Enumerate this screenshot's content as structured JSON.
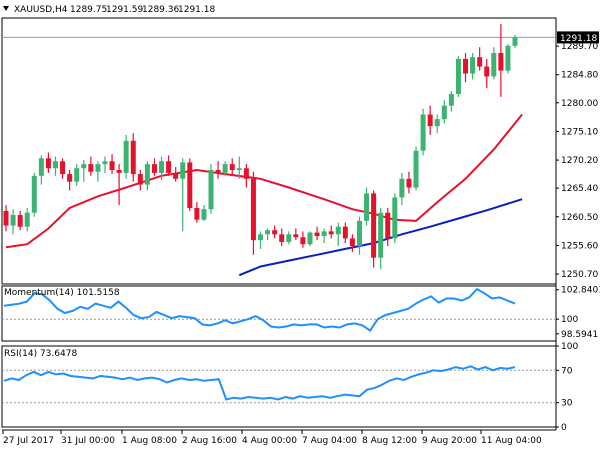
{
  "header": {
    "symbol": "XAUUSD,H4",
    "open": "1289.75",
    "high": "1291.59",
    "low": "1289.36",
    "close": "1291.18"
  },
  "colors": {
    "bull": "#3cb371",
    "bear": "#e8112d",
    "ma_fast": "#e8112d",
    "ma_slow": "#0a1fbf",
    "osc": "#1e90ff",
    "grid": "#9a9a9a"
  },
  "chart_data": [
    {
      "type": "candlestick",
      "panel": "price",
      "ylim": [
        1249.0,
        1294.5
      ],
      "ytick_labels": [
        "1289.70",
        "1284.80",
        "1280.00",
        "1275.10",
        "1270.20",
        "1265.40",
        "1260.50",
        "1255.60",
        "1250.70"
      ],
      "current_price_label": "1291.18",
      "xtick_labels": [
        "27 Jul 2017",
        "31 Jul 00:00",
        "1 Aug 08:00",
        "2 Aug 16:00",
        "4 Aug 00:00",
        "7 Aug 04:00",
        "8 Aug 12:00",
        "9 Aug 20:00",
        "11 Aug 04:00"
      ],
      "candles": [
        {
          "o": 1261.5,
          "h": 1262.5,
          "l": 1258.0,
          "c": 1259.0
        },
        {
          "o": 1259.0,
          "h": 1261.8,
          "l": 1257.5,
          "c": 1260.8
        },
        {
          "o": 1260.8,
          "h": 1261.5,
          "l": 1258.2,
          "c": 1258.8
        },
        {
          "o": 1258.8,
          "h": 1262.0,
          "l": 1258.0,
          "c": 1261.2
        },
        {
          "o": 1261.2,
          "h": 1268.0,
          "l": 1260.5,
          "c": 1267.5
        },
        {
          "o": 1267.5,
          "h": 1271.0,
          "l": 1266.0,
          "c": 1270.5
        },
        {
          "o": 1270.5,
          "h": 1271.5,
          "l": 1268.0,
          "c": 1268.8
        },
        {
          "o": 1268.8,
          "h": 1270.8,
          "l": 1267.5,
          "c": 1270.0
        },
        {
          "o": 1270.0,
          "h": 1270.5,
          "l": 1267.0,
          "c": 1267.8
        },
        {
          "o": 1267.8,
          "h": 1268.5,
          "l": 1265.0,
          "c": 1266.5
        },
        {
          "o": 1266.5,
          "h": 1269.5,
          "l": 1265.8,
          "c": 1268.8
        },
        {
          "o": 1268.8,
          "h": 1270.2,
          "l": 1266.5,
          "c": 1269.5
        },
        {
          "o": 1269.5,
          "h": 1270.8,
          "l": 1267.5,
          "c": 1268.2
        },
        {
          "o": 1268.2,
          "h": 1270.0,
          "l": 1266.5,
          "c": 1269.5
        },
        {
          "o": 1269.5,
          "h": 1270.8,
          "l": 1268.0,
          "c": 1270.0
        },
        {
          "o": 1270.0,
          "h": 1271.2,
          "l": 1267.8,
          "c": 1268.5
        },
        {
          "o": 1268.5,
          "h": 1269.5,
          "l": 1262.5,
          "c": 1268.0
        },
        {
          "o": 1268.0,
          "h": 1274.5,
          "l": 1267.0,
          "c": 1273.5
        },
        {
          "o": 1273.5,
          "h": 1274.8,
          "l": 1266.5,
          "c": 1267.8
        },
        {
          "o": 1267.8,
          "h": 1268.5,
          "l": 1265.0,
          "c": 1266.0
        },
        {
          "o": 1266.0,
          "h": 1270.0,
          "l": 1265.0,
          "c": 1269.5
        },
        {
          "o": 1269.5,
          "h": 1270.5,
          "l": 1267.5,
          "c": 1268.0
        },
        {
          "o": 1268.0,
          "h": 1270.8,
          "l": 1266.8,
          "c": 1270.0
        },
        {
          "o": 1270.0,
          "h": 1271.0,
          "l": 1267.5,
          "c": 1268.0
        },
        {
          "o": 1268.0,
          "h": 1269.0,
          "l": 1266.5,
          "c": 1267.0
        },
        {
          "o": 1267.0,
          "h": 1270.5,
          "l": 1258.0,
          "c": 1269.8
        },
        {
          "o": 1269.8,
          "h": 1270.5,
          "l": 1261.5,
          "c": 1262.0
        },
        {
          "o": 1262.0,
          "h": 1263.0,
          "l": 1259.5,
          "c": 1260.0
        },
        {
          "o": 1260.0,
          "h": 1262.5,
          "l": 1259.8,
          "c": 1261.8
        },
        {
          "o": 1261.8,
          "h": 1269.5,
          "l": 1261.0,
          "c": 1268.5
        },
        {
          "o": 1268.5,
          "h": 1270.0,
          "l": 1267.0,
          "c": 1268.0
        },
        {
          "o": 1268.0,
          "h": 1270.0,
          "l": 1267.5,
          "c": 1269.5
        },
        {
          "o": 1269.5,
          "h": 1270.5,
          "l": 1267.8,
          "c": 1268.5
        },
        {
          "o": 1268.5,
          "h": 1270.8,
          "l": 1267.0,
          "c": 1268.8
        },
        {
          "o": 1268.8,
          "h": 1269.5,
          "l": 1265.5,
          "c": 1267.0
        },
        {
          "o": 1267.0,
          "h": 1268.2,
          "l": 1254.0,
          "c": 1256.5
        },
        {
          "o": 1256.5,
          "h": 1258.0,
          "l": 1255.0,
          "c": 1257.5
        },
        {
          "o": 1257.5,
          "h": 1258.5,
          "l": 1256.5,
          "c": 1258.2
        },
        {
          "o": 1258.2,
          "h": 1259.0,
          "l": 1256.8,
          "c": 1257.5
        },
        {
          "o": 1257.5,
          "h": 1258.5,
          "l": 1255.5,
          "c": 1256.2
        },
        {
          "o": 1256.2,
          "h": 1258.0,
          "l": 1255.8,
          "c": 1257.5
        },
        {
          "o": 1257.5,
          "h": 1258.5,
          "l": 1256.5,
          "c": 1257.0
        },
        {
          "o": 1257.0,
          "h": 1258.0,
          "l": 1255.2,
          "c": 1255.8
        },
        {
          "o": 1255.8,
          "h": 1258.0,
          "l": 1255.5,
          "c": 1257.8
        },
        {
          "o": 1257.8,
          "h": 1258.8,
          "l": 1256.5,
          "c": 1257.2
        },
        {
          "o": 1257.2,
          "h": 1258.5,
          "l": 1256.0,
          "c": 1258.0
        },
        {
          "o": 1258.0,
          "h": 1259.0,
          "l": 1256.8,
          "c": 1257.5
        },
        {
          "o": 1257.5,
          "h": 1259.5,
          "l": 1255.5,
          "c": 1258.8
        },
        {
          "o": 1258.8,
          "h": 1259.5,
          "l": 1256.0,
          "c": 1256.8
        },
        {
          "o": 1256.8,
          "h": 1257.5,
          "l": 1254.5,
          "c": 1255.5
        },
        {
          "o": 1255.5,
          "h": 1260.5,
          "l": 1254.0,
          "c": 1259.8
        },
        {
          "o": 1259.8,
          "h": 1265.5,
          "l": 1259.0,
          "c": 1264.5
        },
        {
          "o": 1264.5,
          "h": 1265.0,
          "l": 1251.8,
          "c": 1253.5
        },
        {
          "o": 1253.5,
          "h": 1262.0,
          "l": 1251.5,
          "c": 1261.2
        },
        {
          "o": 1261.2,
          "h": 1262.0,
          "l": 1255.5,
          "c": 1256.8
        },
        {
          "o": 1256.8,
          "h": 1264.5,
          "l": 1256.0,
          "c": 1263.8
        },
        {
          "o": 1263.8,
          "h": 1268.0,
          "l": 1262.5,
          "c": 1267.0
        },
        {
          "o": 1267.0,
          "h": 1268.2,
          "l": 1264.5,
          "c": 1265.5
        },
        {
          "o": 1265.5,
          "h": 1272.5,
          "l": 1265.0,
          "c": 1271.8
        },
        {
          "o": 1271.8,
          "h": 1279.0,
          "l": 1271.0,
          "c": 1278.0
        },
        {
          "o": 1278.0,
          "h": 1279.5,
          "l": 1274.5,
          "c": 1276.0
        },
        {
          "o": 1276.0,
          "h": 1278.0,
          "l": 1274.8,
          "c": 1277.2
        },
        {
          "o": 1277.2,
          "h": 1280.5,
          "l": 1276.5,
          "c": 1279.5
        },
        {
          "o": 1279.5,
          "h": 1282.0,
          "l": 1278.5,
          "c": 1281.5
        },
        {
          "o": 1281.5,
          "h": 1288.0,
          "l": 1281.0,
          "c": 1287.5
        },
        {
          "o": 1287.5,
          "h": 1288.5,
          "l": 1283.5,
          "c": 1285.0
        },
        {
          "o": 1285.0,
          "h": 1288.5,
          "l": 1284.0,
          "c": 1287.8
        },
        {
          "o": 1287.8,
          "h": 1289.5,
          "l": 1285.5,
          "c": 1286.2
        },
        {
          "o": 1286.2,
          "h": 1287.5,
          "l": 1282.5,
          "c": 1284.5
        },
        {
          "o": 1284.5,
          "h": 1289.5,
          "l": 1284.0,
          "c": 1288.5
        },
        {
          "o": 1288.5,
          "h": 1293.5,
          "l": 1281.0,
          "c": 1285.5
        },
        {
          "o": 1285.5,
          "h": 1290.0,
          "l": 1285.0,
          "c": 1289.75
        },
        {
          "o": 1289.75,
          "h": 1291.59,
          "l": 1289.36,
          "c": 1291.18
        }
      ],
      "series": [
        {
          "role": "ma_fast",
          "points": [
            [
              0,
              1255.3
            ],
            [
              3,
              1255.8
            ],
            [
              6,
              1258.5
            ],
            [
              9,
              1262.0
            ],
            [
              13,
              1264.0
            ],
            [
              17,
              1265.5
            ],
            [
              22,
              1267.5
            ],
            [
              27,
              1268.5
            ],
            [
              31,
              1267.8
            ],
            [
              36,
              1267.0
            ],
            [
              40,
              1265.5
            ],
            [
              45,
              1263.5
            ],
            [
              49,
              1261.8
            ],
            [
              52,
              1261.0
            ],
            [
              55,
              1260.0
            ],
            [
              58,
              1259.8
            ],
            [
              61,
              1263.0
            ],
            [
              65,
              1267.0
            ],
            [
              69,
              1272.0
            ],
            [
              72,
              1276.5
            ],
            [
              73,
              1278.0
            ]
          ]
        },
        {
          "role": "ma_slow",
          "points": [
            [
              33,
              1250.5
            ],
            [
              36,
              1252.0
            ],
            [
              40,
              1253.0
            ],
            [
              44,
              1254.0
            ],
            [
              48,
              1255.0
            ],
            [
              52,
              1256.0
            ],
            [
              56,
              1257.5
            ],
            [
              60,
              1258.8
            ],
            [
              64,
              1260.2
            ],
            [
              68,
              1261.6
            ],
            [
              73,
              1263.5
            ]
          ]
        }
      ]
    },
    {
      "type": "line",
      "panel": "momentum",
      "label": "Momentum(14) 101.5158",
      "ytick_labels": [
        "102.8401",
        "100",
        "98.5941"
      ],
      "ylim": [
        97.9,
        103.2
      ],
      "reference_level": 100,
      "values": [
        101.3,
        101.4,
        101.5,
        101.7,
        102.5,
        102.4,
        101.8,
        101.0,
        100.6,
        100.8,
        101.2,
        101.0,
        101.5,
        101.3,
        101.1,
        101.7,
        101.1,
        100.4,
        100.1,
        100.2,
        100.7,
        100.4,
        100.1,
        100.3,
        100.2,
        100.1,
        99.5,
        99.4,
        99.6,
        99.9,
        99.6,
        99.8,
        100.0,
        100.3,
        99.9,
        99.3,
        99.2,
        99.3,
        99.5,
        99.4,
        99.5,
        99.5,
        99.2,
        99.3,
        99.2,
        99.5,
        99.6,
        99.4,
        98.9,
        100.0,
        100.4,
        100.6,
        100.8,
        101.0,
        101.5,
        101.9,
        102.2,
        101.6,
        102.0,
        102.0,
        101.8,
        102.1,
        102.9,
        102.5,
        102.0,
        102.1,
        101.8,
        101.5
      ]
    },
    {
      "type": "line",
      "panel": "rsi",
      "label": "RSI(14) 73.6478",
      "ytick_labels": [
        "100",
        "70",
        "30",
        "0"
      ],
      "ylim": [
        0,
        100
      ],
      "levels": [
        70,
        30
      ],
      "values": [
        57,
        60,
        58,
        64,
        68,
        64,
        68,
        65,
        66,
        63,
        62,
        61,
        60,
        63,
        62,
        61,
        59,
        61,
        58,
        60,
        61,
        59,
        55,
        58,
        60,
        58,
        59,
        57,
        58,
        59,
        34,
        36,
        35,
        37,
        36,
        35,
        36,
        34,
        37,
        35,
        38,
        36,
        37,
        38,
        36,
        38,
        40,
        39,
        38,
        46,
        48,
        52,
        57,
        60,
        58,
        62,
        65,
        67,
        70,
        69,
        71,
        74,
        72,
        75,
        71,
        74,
        70,
        73,
        72,
        74
      ]
    }
  ]
}
